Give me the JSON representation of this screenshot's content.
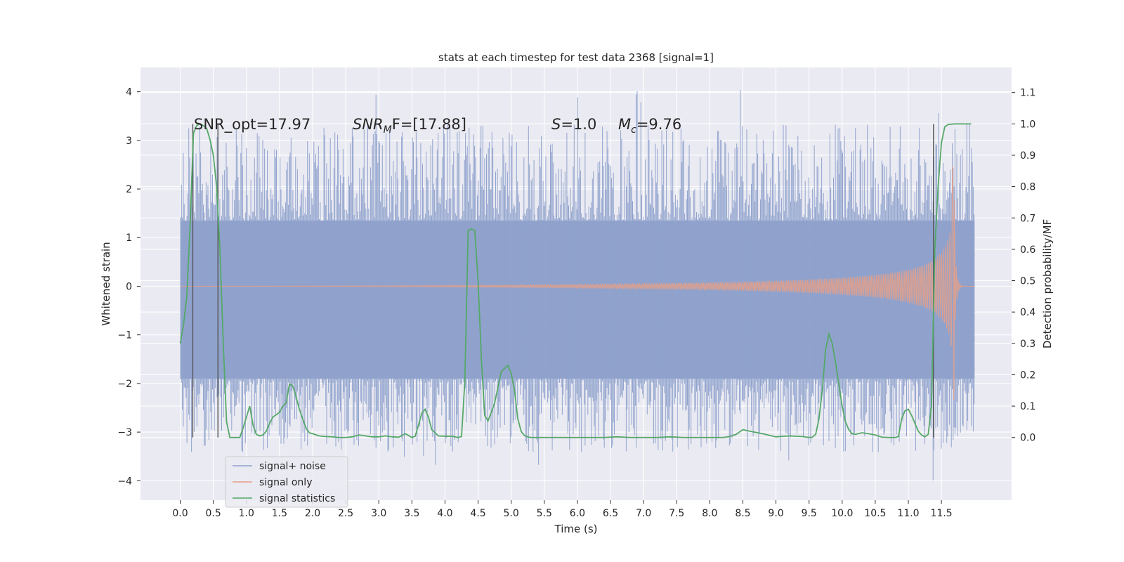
{
  "chart_data": {
    "type": "line",
    "title": "stats at each timestep for test data 2368 [signal=1]",
    "xlabel": "Time (s)",
    "ylabel_left": "Whitened strain",
    "ylabel_right": "Detection probability/MF",
    "xlim": [
      -0.6,
      12.56
    ],
    "ylim_left": [
      -4.4,
      4.5
    ],
    "ylim_right": [
      -0.2,
      1.18
    ],
    "x_ticks": [
      "0.0",
      "0.5",
      "1.0",
      "1.5",
      "2.0",
      "2.5",
      "3.0",
      "3.5",
      "4.0",
      "4.5",
      "5.0",
      "5.5",
      "6.0",
      "6.5",
      "7.0",
      "7.5",
      "8.0",
      "8.5",
      "9.0",
      "9.5",
      "10.0",
      "10.5",
      "11.0",
      "11.5"
    ],
    "y_ticks_left": [
      "4",
      "3",
      "2",
      "1",
      "0",
      "−1",
      "−2",
      "−3",
      "−4"
    ],
    "y_ticks_right": [
      "1.1",
      "1.0",
      "0.9",
      "0.8",
      "0.7",
      "0.6",
      "0.5",
      "0.4",
      "0.3",
      "0.2",
      "0.1",
      "0.0"
    ],
    "grid": true,
    "legend_position": "lower-left",
    "annotations": {
      "snr_opt": "SNR_opt=17.97",
      "snr_mf_main": "SNR",
      "snr_mf_sub": "M",
      "snr_mf_rest": "F=[17.88]",
      "s_main": "S",
      "s_rest": "=1.0",
      "mc_main": "M",
      "mc_sub": "c",
      "mc_rest": "=9.76"
    },
    "vertical_lines": [
      0.19,
      0.57,
      11.38
    ],
    "series": [
      {
        "name": "signal+ noise",
        "color": "#8da0cb",
        "style": "dense noise band",
        "x_range": [
          0.0,
          12.0
        ],
        "core_range": [
          -1.9,
          1.35
        ],
        "max": 4.1,
        "min": -4.0
      },
      {
        "name": "signal only",
        "color": "#e5a088",
        "style": "chirp",
        "x_range": [
          0.0,
          12.0
        ],
        "peak_time": 11.68,
        "peak_amplitude": 2.5
      },
      {
        "name": "signal statistics",
        "color": "#55a868",
        "axis": "right",
        "x": [
          0.0,
          0.05,
          0.1,
          0.15,
          0.2,
          0.25,
          0.3,
          0.35,
          0.4,
          0.45,
          0.5,
          0.55,
          0.6,
          0.65,
          0.7,
          0.75,
          0.8,
          0.85,
          0.9,
          0.95,
          1.0,
          1.05,
          1.1,
          1.15,
          1.2,
          1.25,
          1.3,
          1.35,
          1.4,
          1.5,
          1.55,
          1.6,
          1.65,
          1.7,
          1.75,
          1.8,
          1.85,
          1.9,
          1.95,
          2.0,
          2.1,
          2.2,
          2.3,
          2.4,
          2.5,
          2.6,
          2.7,
          2.8,
          2.9,
          3.0,
          3.1,
          3.2,
          3.3,
          3.4,
          3.5,
          3.55,
          3.6,
          3.65,
          3.7,
          3.75,
          3.8,
          3.9,
          4.0,
          4.1,
          4.2,
          4.25,
          4.3,
          4.35,
          4.4,
          4.45,
          4.5,
          4.55,
          4.6,
          4.65,
          4.7,
          4.75,
          4.8,
          4.85,
          4.9,
          4.95,
          5.0,
          5.05,
          5.1,
          5.15,
          5.2,
          5.25,
          5.3,
          5.4,
          5.6,
          5.8,
          6.0,
          6.2,
          6.4,
          6.6,
          6.8,
          7.0,
          7.2,
          7.4,
          7.6,
          7.8,
          8.0,
          8.2,
          8.3,
          8.4,
          8.5,
          8.6,
          8.8,
          9.0,
          9.2,
          9.4,
          9.5,
          9.55,
          9.6,
          9.65,
          9.7,
          9.75,
          9.8,
          9.85,
          9.9,
          9.95,
          10.0,
          10.05,
          10.1,
          10.15,
          10.2,
          10.3,
          10.4,
          10.5,
          10.6,
          10.7,
          10.8,
          10.85,
          10.9,
          10.95,
          11.0,
          11.05,
          11.1,
          11.15,
          11.2,
          11.25,
          11.3,
          11.35,
          11.4,
          11.45,
          11.5,
          11.55,
          11.6,
          11.7,
          11.8,
          11.9,
          11.95
        ],
        "y": [
          0.3,
          0.36,
          0.45,
          0.68,
          0.97,
          0.995,
          1.0,
          0.995,
          0.985,
          0.95,
          0.9,
          0.8,
          0.6,
          0.3,
          0.05,
          0.0,
          0.0,
          0.0,
          0.0,
          0.03,
          0.065,
          0.1,
          0.04,
          0.01,
          0.005,
          0.008,
          0.02,
          0.045,
          0.065,
          0.08,
          0.1,
          0.11,
          0.17,
          0.165,
          0.13,
          0.09,
          0.06,
          0.03,
          0.015,
          0.012,
          0.005,
          0.003,
          0.002,
          0.0,
          0.0,
          0.002,
          0.008,
          0.005,
          0.002,
          0.002,
          0.005,
          0.002,
          0.001,
          0.012,
          0.0,
          0.004,
          0.04,
          0.077,
          0.09,
          0.065,
          0.025,
          0.005,
          0.004,
          0.004,
          0.0,
          0.003,
          0.18,
          0.66,
          0.665,
          0.66,
          0.5,
          0.25,
          0.07,
          0.053,
          0.08,
          0.11,
          0.16,
          0.21,
          0.22,
          0.23,
          0.205,
          0.15,
          0.06,
          0.02,
          0.006,
          0.002,
          0.0,
          0.0,
          0.0,
          0.0,
          0.0,
          0.0,
          0.0,
          0.002,
          0.0,
          0.0,
          0.0,
          0.002,
          0.0,
          0.0,
          0.0,
          0.0,
          0.003,
          0.01,
          0.025,
          0.02,
          0.012,
          0.002,
          0.005,
          0.003,
          0.0,
          0.001,
          0.01,
          0.06,
          0.15,
          0.28,
          0.33,
          0.3,
          0.24,
          0.17,
          0.1,
          0.05,
          0.025,
          0.012,
          0.01,
          0.015,
          0.012,
          0.008,
          0.001,
          0.0,
          0.0,
          0.003,
          0.06,
          0.085,
          0.09,
          0.07,
          0.045,
          0.02,
          0.008,
          0.002,
          0.01,
          0.1,
          0.6,
          0.8,
          0.94,
          0.99,
          0.998,
          1.0,
          1.0,
          1.0,
          1.0
        ]
      }
    ]
  }
}
